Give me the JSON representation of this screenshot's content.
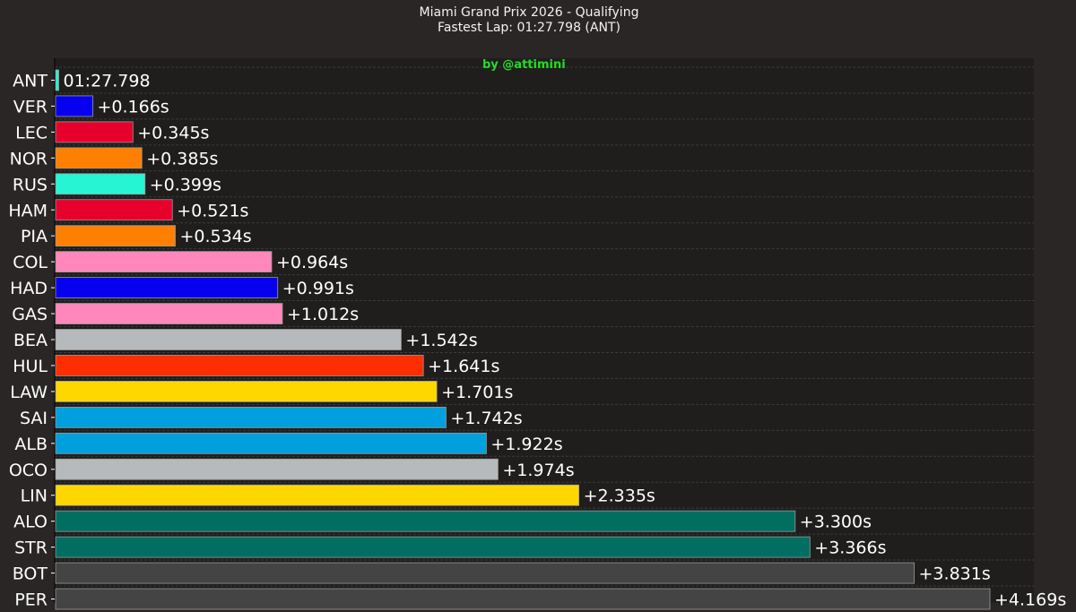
{
  "title": "Miami Grand Prix 2026 - Qualifying",
  "subtitle": "Fastest Lap: 01:27.798 (ANT)",
  "watermark": "by @attimini",
  "colors": {
    "background": "#292625",
    "plot_background": "#1f1e1d",
    "grid": "#3c3a39",
    "text": "#ffffff",
    "watermark": "#22dd22"
  },
  "chart_data": {
    "type": "bar",
    "orientation": "horizontal",
    "title": "Miami Grand Prix 2026 - Qualifying",
    "subtitle": "Fastest Lap: 01:27.798 (ANT)",
    "xlabel": "",
    "ylabel": "",
    "xlim": [
      0,
      4.3
    ],
    "grid": "horizontal dashed",
    "categories": [
      "ANT",
      "VER",
      "LEC",
      "NOR",
      "RUS",
      "HAM",
      "PIA",
      "COL",
      "HAD",
      "GAS",
      "BEA",
      "HUL",
      "LAW",
      "SAI",
      "ALB",
      "OCO",
      "LIN",
      "ALO",
      "STR",
      "BOT",
      "PER"
    ],
    "values": [
      0,
      0.166,
      0.345,
      0.385,
      0.399,
      0.521,
      0.534,
      0.964,
      0.991,
      1.012,
      1.542,
      1.641,
      1.701,
      1.742,
      1.922,
      1.974,
      2.335,
      3.3,
      3.366,
      3.831,
      4.169
    ],
    "labels": [
      "01:27.798",
      "+0.166s",
      "+0.345s",
      "+0.385s",
      "+0.399s",
      "+0.521s",
      "+0.534s",
      "+0.964s",
      "+0.991s",
      "+1.012s",
      "+1.542s",
      "+1.641s",
      "+1.701s",
      "+1.742s",
      "+1.922s",
      "+1.974s",
      "+2.335s",
      "+3.300s",
      "+3.366s",
      "+3.831s",
      "+4.169s"
    ],
    "bar_colors": [
      "#27f4d2",
      "#0600ef",
      "#e8002d",
      "#ff8000",
      "#27f4d2",
      "#e8002d",
      "#ff8000",
      "#ff87bc",
      "#0600ef",
      "#ff87bc",
      "#b6babd",
      "#ff2d00",
      "#ffd700",
      "#00a0de",
      "#00a0de",
      "#b6babd",
      "#ffd700",
      "#006f62",
      "#006f62",
      "#444444",
      "#444444"
    ]
  }
}
